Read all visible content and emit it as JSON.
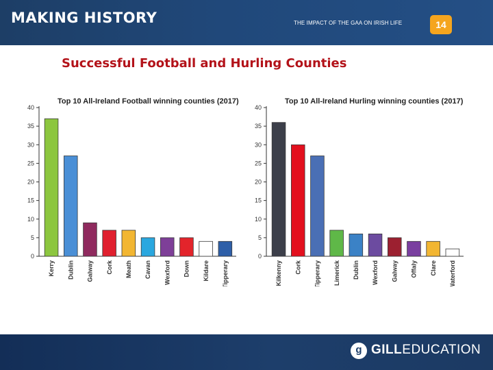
{
  "header": {
    "series_title": "MAKING HISTORY",
    "section_title": "THE IMPACT OF THE GAA ON IRISH LIFE",
    "page_number": "14"
  },
  "slide_title": "Successful Football and Hurling Counties",
  "footer": {
    "logo_letter": "g",
    "brand_bold": "GILL",
    "brand_light": "EDUCATION"
  },
  "chart_data": [
    {
      "id": "football",
      "type": "bar",
      "title": "Top 10 All-Ireland Football winning counties (2017)",
      "xlabel": "",
      "ylabel": "",
      "ylim": [
        0,
        40
      ],
      "yticks": [
        0,
        5,
        10,
        15,
        20,
        25,
        30,
        35,
        40
      ],
      "grid": false,
      "categories": [
        "Kerry",
        "Dublin",
        "Galway",
        "Cork",
        "Meath",
        "Cavan",
        "Wexford",
        "Down",
        "Kildare",
        "Tipperary"
      ],
      "values": [
        37,
        27,
        9,
        7,
        7,
        5,
        5,
        5,
        4,
        4
      ],
      "colors": [
        "#8cc63f",
        "#4a8fd6",
        "#8f2a5e",
        "#e0202f",
        "#f2b632",
        "#2aa7df",
        "#7e3f98",
        "#e3242b",
        "#ffffff",
        "#2e5fa8"
      ]
    },
    {
      "id": "hurling",
      "type": "bar",
      "title": "Top 10 All-Ireland Hurling winning counties (2017)",
      "xlabel": "",
      "ylabel": "",
      "ylim": [
        0,
        40
      ],
      "yticks": [
        0,
        5,
        10,
        15,
        20,
        25,
        30,
        35,
        40
      ],
      "grid": false,
      "categories": [
        "Kilkenny",
        "Cork",
        "Tipperary",
        "Limerick",
        "Dublin",
        "Wexford",
        "Galway",
        "Offaly",
        "Clare",
        "Waterford"
      ],
      "values": [
        36,
        30,
        27,
        7,
        6,
        6,
        5,
        4,
        4,
        2
      ],
      "colors": [
        "#3c3f4a",
        "#e3101e",
        "#4a6fb5",
        "#5fb848",
        "#3b82c6",
        "#6c4ba0",
        "#9c2030",
        "#7a3fa0",
        "#f2b632",
        "#ffffff"
      ]
    }
  ]
}
